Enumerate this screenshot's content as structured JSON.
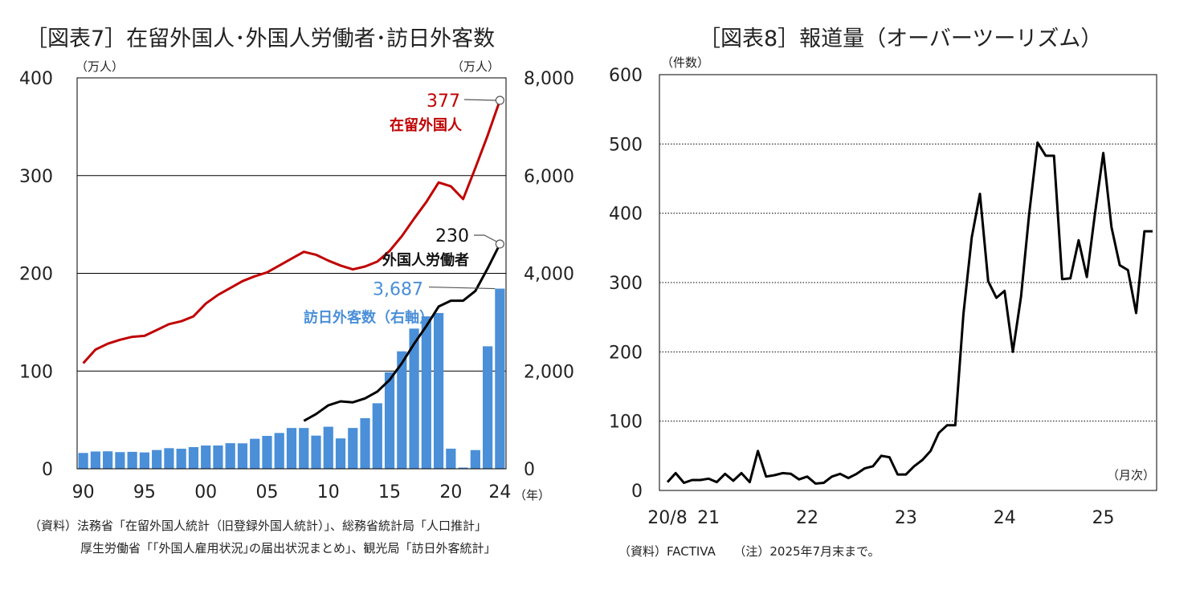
{
  "chart7": {
    "title": "［図表7］在留外国人･外国人労働者･訪日外客数",
    "left_unit": "（万人）",
    "right_unit": "（万人）",
    "year_unit": "（年）",
    "left_ticks": [
      "400",
      "300",
      "200",
      "100",
      "0"
    ],
    "right_ticks": [
      "8,000",
      "6,000",
      "4,000",
      "2,000",
      "0"
    ],
    "x_ticks": [
      "90",
      "95",
      "00",
      "05",
      "10",
      "15",
      "20",
      "24"
    ],
    "source_line1": "（資料）法務省「在留外国人統計（旧登録外国人統計）」、総務省統計局「人口推計」",
    "source_line2": "厚生労働省「｢外国人雇用状況｣の届出状況まとめ」、観光局「訪日外客統計」",
    "colors": {
      "residents": "#c00000",
      "workers": "#000000",
      "visitors": "#4a8fd8"
    }
  },
  "chart8": {
    "title": "［図表8］報道量（オーバーツーリズム）",
    "y_unit": "（件数）",
    "x_unit": "（月次）",
    "y_ticks": [
      "600",
      "500",
      "400",
      "300",
      "200",
      "100",
      "0"
    ],
    "x_ticks": [
      "20/8",
      "21",
      "22",
      "23",
      "24",
      "25"
    ],
    "source": "（資料）FACTIVA　　（注）2025年7月末まで。",
    "colors": {
      "line": "#000000"
    }
  },
  "chart_data": [
    {
      "type": "bar+line",
      "title": "［図表7］在留外国人･外国人労働者･訪日外客数",
      "x": [
        1990,
        1991,
        1992,
        1993,
        1994,
        1995,
        1996,
        1997,
        1998,
        1999,
        2000,
        2001,
        2002,
        2003,
        2004,
        2005,
        2006,
        2007,
        2008,
        2009,
        2010,
        2011,
        2012,
        2013,
        2014,
        2015,
        2016,
        2017,
        2018,
        2019,
        2020,
        2021,
        2022,
        2023,
        2024
      ],
      "y_left_lim": [
        0,
        400
      ],
      "y_right_lim": [
        0,
        8000
      ],
      "grid": true,
      "series": [
        {
          "name": "在留外国人",
          "axis": "left",
          "kind": "line",
          "label_value": "377",
          "values": [
            108,
            122,
            128,
            132,
            135,
            136,
            142,
            148,
            151,
            156,
            169,
            178,
            185,
            192,
            197,
            201,
            208,
            215,
            222,
            219,
            213,
            208,
            204,
            207,
            212,
            223,
            238,
            256,
            273,
            293,
            289,
            276,
            308,
            341,
            377
          ]
        },
        {
          "name": "外国人労働者",
          "axis": "left",
          "kind": "line",
          "label_value": "230",
          "values": [
            null,
            null,
            null,
            null,
            null,
            null,
            null,
            null,
            null,
            null,
            null,
            null,
            null,
            null,
            null,
            null,
            null,
            null,
            49,
            56,
            65,
            69,
            68,
            72,
            79,
            91,
            108,
            128,
            146,
            166,
            172,
            172,
            182,
            205,
            230
          ]
        },
        {
          "name": "訪日外客数（右軸）",
          "axis": "right",
          "kind": "bar",
          "label_value": "3,687",
          "values": [
            324,
            354,
            358,
            341,
            347,
            335,
            384,
            422,
            411,
            444,
            476,
            477,
            524,
            521,
            614,
            673,
            733,
            835,
            835,
            679,
            861,
            622,
            836,
            1036,
            1341,
            1974,
            2404,
            2869,
            3119,
            3188,
            412,
            25,
            383,
            2507,
            3687
          ]
        }
      ]
    },
    {
      "type": "line",
      "title": "［図表8］報道量（オーバーツーリズム）",
      "x_start": "2020-08",
      "x_end": "2025-07",
      "ylabel": "（件数）",
      "ylim": [
        0,
        600
      ],
      "grid": true,
      "values": [
        12,
        25,
        11,
        15,
        15,
        17,
        12,
        24,
        14,
        25,
        12,
        57,
        20,
        22,
        25,
        24,
        16,
        20,
        10,
        11,
        20,
        24,
        18,
        24,
        32,
        35,
        50,
        48,
        23,
        23,
        35,
        44,
        57,
        83,
        94,
        94,
        255,
        365,
        428,
        302,
        278,
        288,
        200,
        280,
        400,
        502,
        483,
        483,
        305,
        306,
        361,
        308,
        400,
        487,
        380,
        325,
        318,
        256,
        374,
        374
      ]
    }
  ]
}
